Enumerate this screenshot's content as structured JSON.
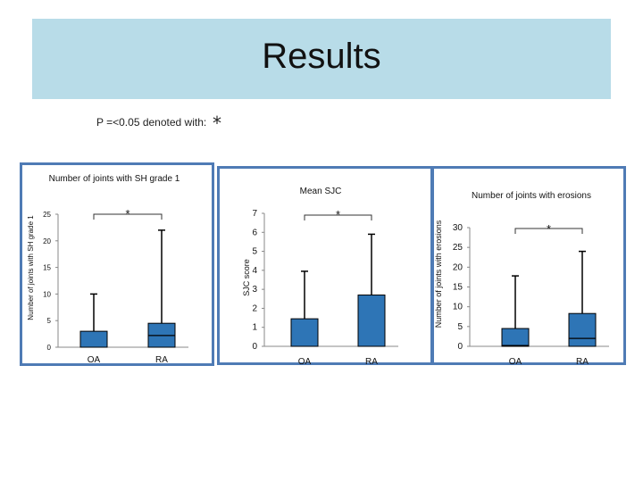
{
  "slide": {
    "title": "Results",
    "p_note": "P =<0.05 denoted with:",
    "p_symbol": "*"
  },
  "colors": {
    "bar": "#2e75b6",
    "panel_border": "#4f7bb5",
    "banner": "#b8dce8"
  },
  "chart_data": [
    {
      "type": "bar",
      "title": "Number of joints with SH grade 1",
      "ylabel": "Number of joints with SH grade 1",
      "xlabel": "",
      "categories": [
        "OA",
        "RA"
      ],
      "values": [
        3,
        4.5
      ],
      "medians": [
        null,
        2.2
      ],
      "error_upper": [
        10,
        22
      ],
      "ylim": [
        0,
        25
      ],
      "yticks": [
        "0",
        "5",
        "10",
        "15",
        "20",
        "25"
      ],
      "significance": "*"
    },
    {
      "type": "bar",
      "title": "Mean SJC",
      "ylabel": "SJC score",
      "xlabel": "",
      "categories": [
        "OA",
        "RA"
      ],
      "values": [
        1.45,
        2.7
      ],
      "medians": [
        null,
        null
      ],
      "error_upper": [
        3.95,
        5.9
      ],
      "ylim": [
        0,
        7
      ],
      "yticks": [
        "0",
        "1",
        "2",
        "3",
        "4",
        "5",
        "6",
        "7"
      ],
      "significance": "*"
    },
    {
      "type": "bar",
      "title": "Number of joints with erosions",
      "ylabel": "Number of joints with erosions",
      "xlabel": "",
      "categories": [
        "OA",
        "RA"
      ],
      "values": [
        4.5,
        8.3
      ],
      "medians": [
        0.2,
        2
      ],
      "error_upper": [
        17.8,
        24
      ],
      "ylim": [
        0,
        30
      ],
      "yticks": [
        "0",
        "5",
        "10",
        "15",
        "20",
        "25",
        "30"
      ],
      "significance": "*"
    }
  ]
}
